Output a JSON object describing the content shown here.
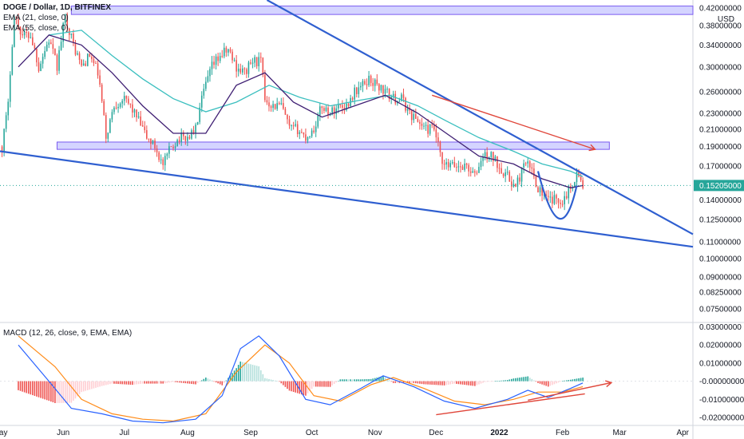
{
  "header": {
    "symbol_line": "DOGE / Dollar, 1D, BITFINEX",
    "ema1": "EMA (21, close, 0)",
    "ema2": "EMA (55, close, 0)",
    "macd": "MACD (12, 26, close, 9, EMA, EMA)",
    "currency": "USD"
  },
  "colors": {
    "up": "#26a69a",
    "down": "#ef5350",
    "ema21": "#3f1f73",
    "ema55": "#3bbfbf",
    "trendline": "#2f5fd0",
    "zone_fill": "#c6c6ff",
    "zone_border": "#7a5af0",
    "arrow": "#e0463a",
    "price_label_bg": "#26a69a",
    "macd_line": "#2962ff",
    "signal_line": "#ff8c1a"
  },
  "chart_data": {
    "type": "candlestick",
    "price_axis": {
      "scale": "log",
      "ticks": [
        "0.42000000",
        "0.38000000",
        "0.34000000",
        "0.30000000",
        "0.26000000",
        "0.23000000",
        "0.21000000",
        "0.19000000",
        "0.17000000",
        "0.14000000",
        "0.12500000",
        "0.11000000",
        "0.10000000",
        "0.09000000",
        "0.08250000",
        "0.07500000"
      ],
      "tick_values": [
        0.42,
        0.38,
        0.34,
        0.3,
        0.26,
        0.23,
        0.21,
        0.19,
        0.17,
        0.14,
        0.125,
        0.11,
        0.1,
        0.09,
        0.0825,
        0.075
      ],
      "ylim": [
        0.07,
        0.44
      ]
    },
    "last_price": {
      "value": 0.15205,
      "label": "0.15205000"
    },
    "time_axis": {
      "labels": [
        "May",
        "Jun",
        "Jul",
        "Aug",
        "Sep",
        "Oct",
        "Nov",
        "Dec",
        "2022",
        "Feb",
        "Mar",
        "Apr"
      ],
      "start": "2021-05-01",
      "end": "2022-04-06"
    },
    "close_path": [
      [
        "2021-05-02",
        0.19
      ],
      [
        "2021-05-05",
        0.24
      ],
      [
        "2021-05-08",
        0.4
      ],
      [
        "2021-05-12",
        0.36
      ],
      [
        "2021-05-16",
        0.36
      ],
      [
        "2021-05-20",
        0.3
      ],
      [
        "2021-05-25",
        0.35
      ],
      [
        "2021-05-29",
        0.3
      ],
      [
        "2021-06-02",
        0.4
      ],
      [
        "2021-06-06",
        0.34
      ],
      [
        "2021-06-10",
        0.3
      ],
      [
        "2021-06-14",
        0.32
      ],
      [
        "2021-06-18",
        0.29
      ],
      [
        "2021-06-22",
        0.2
      ],
      [
        "2021-06-26",
        0.24
      ],
      [
        "2021-06-30",
        0.25
      ],
      [
        "2021-07-04",
        0.24
      ],
      [
        "2021-07-08",
        0.22
      ],
      [
        "2021-07-12",
        0.2
      ],
      [
        "2021-07-16",
        0.19
      ],
      [
        "2021-07-20",
        0.17
      ],
      [
        "2021-07-24",
        0.19
      ],
      [
        "2021-07-28",
        0.2
      ],
      [
        "2021-08-01",
        0.2
      ],
      [
        "2021-08-05",
        0.21
      ],
      [
        "2021-08-09",
        0.26
      ],
      [
        "2021-08-13",
        0.3
      ],
      [
        "2021-08-17",
        0.32
      ],
      [
        "2021-08-21",
        0.33
      ],
      [
        "2021-08-25",
        0.3
      ],
      [
        "2021-08-29",
        0.29
      ],
      [
        "2021-09-02",
        0.31
      ],
      [
        "2021-09-06",
        0.31
      ],
      [
        "2021-09-08",
        0.25
      ],
      [
        "2021-09-12",
        0.24
      ],
      [
        "2021-09-16",
        0.24
      ],
      [
        "2021-09-20",
        0.21
      ],
      [
        "2021-09-24",
        0.21
      ],
      [
        "2021-09-28",
        0.2
      ],
      [
        "2021-10-02",
        0.21
      ],
      [
        "2021-10-06",
        0.24
      ],
      [
        "2021-10-10",
        0.23
      ],
      [
        "2021-10-14",
        0.24
      ],
      [
        "2021-10-18",
        0.24
      ],
      [
        "2021-10-22",
        0.26
      ],
      [
        "2021-10-26",
        0.27
      ],
      [
        "2021-10-29",
        0.28
      ],
      [
        "2021-11-02",
        0.27
      ],
      [
        "2021-11-06",
        0.26
      ],
      [
        "2021-11-10",
        0.25
      ],
      [
        "2021-11-14",
        0.25
      ],
      [
        "2021-11-18",
        0.23
      ],
      [
        "2021-11-22",
        0.22
      ],
      [
        "2021-11-26",
        0.21
      ],
      [
        "2021-11-30",
        0.21
      ],
      [
        "2021-12-04",
        0.17
      ],
      [
        "2021-12-08",
        0.17
      ],
      [
        "2021-12-12",
        0.17
      ],
      [
        "2021-12-16",
        0.17
      ],
      [
        "2021-12-20",
        0.16
      ],
      [
        "2021-12-24",
        0.18
      ],
      [
        "2021-12-28",
        0.18
      ],
      [
        "2022-01-01",
        0.17
      ],
      [
        "2022-01-05",
        0.16
      ],
      [
        "2022-01-09",
        0.15
      ],
      [
        "2022-01-13",
        0.17
      ],
      [
        "2022-01-16",
        0.17
      ],
      [
        "2022-01-20",
        0.15
      ],
      [
        "2022-01-24",
        0.14
      ],
      [
        "2022-01-28",
        0.14
      ],
      [
        "2022-02-01",
        0.14
      ],
      [
        "2022-02-05",
        0.15
      ],
      [
        "2022-02-08",
        0.163
      ],
      [
        "2022-02-11",
        0.152
      ]
    ],
    "ema21_path": [
      [
        "2021-05-10",
        0.3
      ],
      [
        "2021-05-25",
        0.36
      ],
      [
        "2021-06-10",
        0.34
      ],
      [
        "2021-06-25",
        0.29
      ],
      [
        "2021-07-10",
        0.24
      ],
      [
        "2021-07-25",
        0.205
      ],
      [
        "2021-08-10",
        0.205
      ],
      [
        "2021-08-25",
        0.27
      ],
      [
        "2021-09-08",
        0.29
      ],
      [
        "2021-09-22",
        0.245
      ],
      [
        "2021-10-06",
        0.225
      ],
      [
        "2021-10-22",
        0.24
      ],
      [
        "2021-11-06",
        0.255
      ],
      [
        "2021-11-22",
        0.23
      ],
      [
        "2021-12-06",
        0.205
      ],
      [
        "2021-12-22",
        0.18
      ],
      [
        "2022-01-08",
        0.172
      ],
      [
        "2022-01-22",
        0.158
      ],
      [
        "2022-02-05",
        0.15
      ],
      [
        "2022-02-11",
        0.152
      ]
    ],
    "ema55_path": [
      [
        "2021-05-25",
        0.36
      ],
      [
        "2021-06-10",
        0.37
      ],
      [
        "2021-06-25",
        0.32
      ],
      [
        "2021-07-10",
        0.28
      ],
      [
        "2021-07-25",
        0.25
      ],
      [
        "2021-08-10",
        0.232
      ],
      [
        "2021-08-25",
        0.245
      ],
      [
        "2021-09-10",
        0.27
      ],
      [
        "2021-09-25",
        0.252
      ],
      [
        "2021-10-10",
        0.24
      ],
      [
        "2021-10-25",
        0.248
      ],
      [
        "2021-11-08",
        0.255
      ],
      [
        "2021-11-22",
        0.24
      ],
      [
        "2021-12-06",
        0.22
      ],
      [
        "2021-12-22",
        0.2
      ],
      [
        "2022-01-08",
        0.185
      ],
      [
        "2022-01-22",
        0.172
      ],
      [
        "2022-02-05",
        0.165
      ],
      [
        "2022-02-11",
        0.16
      ]
    ],
    "annotations": {
      "upper_trendline": [
        [
          "2021-09-09",
          0.44
        ],
        [
          "2022-04-06",
          0.115
        ]
      ],
      "lower_trendline": [
        [
          "2021-05-01",
          0.185
        ],
        [
          "2022-04-06",
          0.107
        ]
      ],
      "top_zone": {
        "x": [
          "2021-06-05",
          "2022-04-06"
        ],
        "y": [
          0.405,
          0.425
        ]
      },
      "support_zone": {
        "x": [
          "2021-05-29",
          "2022-02-24"
        ],
        "y": [
          0.187,
          0.195
        ]
      },
      "red_arrow": [
        [
          "2021-11-29",
          0.255
        ],
        [
          "2022-02-17",
          0.187
        ]
      ],
      "cup_curve": [
        [
          "2022-01-20",
          0.165
        ],
        [
          "2022-01-31",
          0.119
        ],
        [
          "2022-02-08",
          0.152
        ]
      ]
    },
    "macd": {
      "axis_ticks": [
        "0.03000000",
        "0.02000000",
        "0.01000000",
        "-0.00000000",
        "-0.01000000",
        "-0.02000000"
      ],
      "tick_values": [
        0.03,
        0.02,
        0.01,
        0.0,
        -0.01,
        -0.02
      ],
      "ylim": [
        -0.024,
        0.032
      ],
      "macd_path": [
        [
          "2021-05-10",
          0.02
        ],
        [
          "2021-05-25",
          0.0
        ],
        [
          "2021-06-05",
          -0.015
        ],
        [
          "2021-06-20",
          -0.018
        ],
        [
          "2021-07-05",
          -0.022
        ],
        [
          "2021-07-20",
          -0.023
        ],
        [
          "2021-08-05",
          -0.021
        ],
        [
          "2021-08-18",
          -0.008
        ],
        [
          "2021-08-27",
          0.018
        ],
        [
          "2021-09-05",
          0.025
        ],
        [
          "2021-09-15",
          0.014
        ],
        [
          "2021-09-28",
          -0.01
        ],
        [
          "2021-10-10",
          -0.013
        ],
        [
          "2021-10-25",
          -0.004
        ],
        [
          "2021-11-05",
          0.003
        ],
        [
          "2021-11-20",
          -0.003
        ],
        [
          "2021-12-05",
          -0.011
        ],
        [
          "2021-12-20",
          -0.015
        ],
        [
          "2022-01-05",
          -0.01
        ],
        [
          "2022-01-15",
          -0.005
        ],
        [
          "2022-01-25",
          -0.009
        ],
        [
          "2022-02-05",
          -0.004
        ],
        [
          "2022-02-11",
          -0.001
        ]
      ],
      "signal_path": [
        [
          "2021-05-10",
          0.025
        ],
        [
          "2021-05-28",
          0.008
        ],
        [
          "2021-06-10",
          -0.01
        ],
        [
          "2021-06-25",
          -0.018
        ],
        [
          "2021-07-10",
          -0.021
        ],
        [
          "2021-07-25",
          -0.022
        ],
        [
          "2021-08-10",
          -0.018
        ],
        [
          "2021-08-25",
          0.005
        ],
        [
          "2021-09-08",
          0.02
        ],
        [
          "2021-09-20",
          0.01
        ],
        [
          "2021-10-02",
          -0.008
        ],
        [
          "2021-10-15",
          -0.011
        ],
        [
          "2021-10-30",
          -0.002
        ],
        [
          "2021-11-10",
          0.002
        ],
        [
          "2021-11-25",
          -0.004
        ],
        [
          "2021-12-10",
          -0.011
        ],
        [
          "2021-12-25",
          -0.013
        ],
        [
          "2022-01-08",
          -0.01
        ],
        [
          "2022-01-20",
          -0.006
        ],
        [
          "2022-02-01",
          -0.006
        ],
        [
          "2022-02-11",
          -0.003
        ]
      ],
      "trendline": [
        [
          "2021-12-01",
          -0.0185
        ],
        [
          "2022-02-12",
          -0.007
        ]
      ],
      "arrow": [
        [
          "2022-01-15",
          -0.0105
        ],
        [
          "2022-02-25",
          -0.0008
        ]
      ]
    }
  }
}
